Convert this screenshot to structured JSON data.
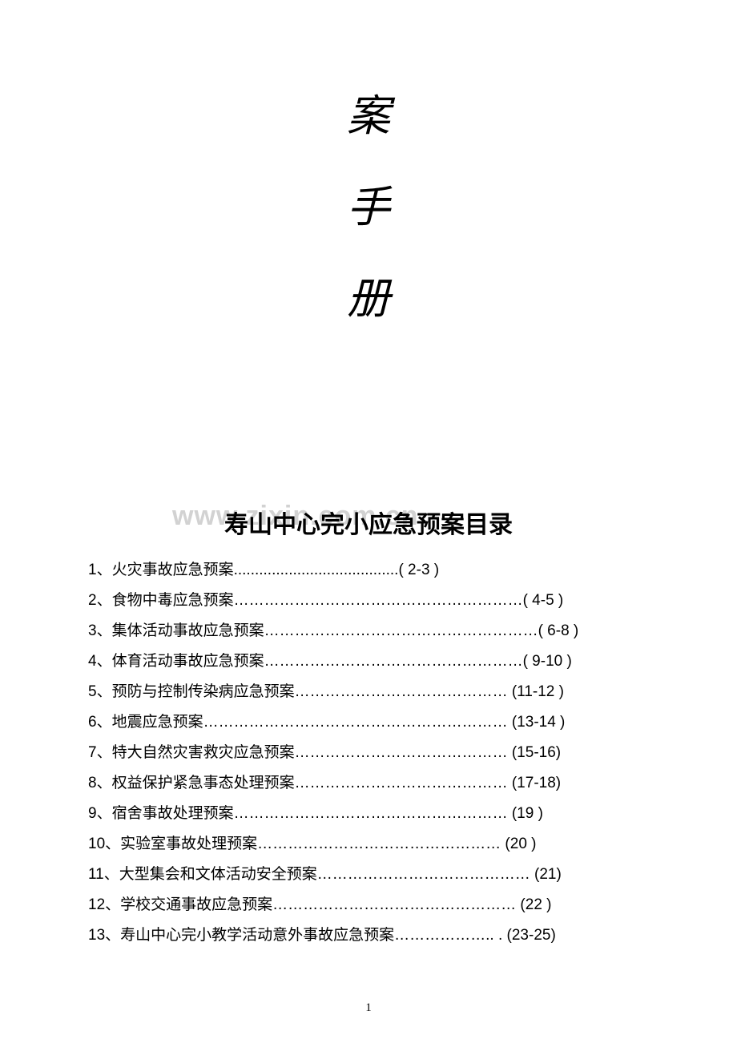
{
  "vertical_title": {
    "char1": "案",
    "char2": "手",
    "char3": "册"
  },
  "watermark": "www.zixin.com.cn",
  "toc_title": "寿山中心完小应急预案目录",
  "toc_items": [
    {
      "num": "1",
      "text": "、火灾事故应急预案.......................................( 2-3 )"
    },
    {
      "num": "2",
      "text": "、食物中毒应急预案…………………………………………………( 4-5 )"
    },
    {
      "num": "3",
      "text": "、集体活动事故应急预案………………………………………………( 6-8 )"
    },
    {
      "num": "4",
      "text": "、体育活动事故应急预案……………………………………………( 9-10 )"
    },
    {
      "num": "5",
      "text": "、预防与控制传染病应急预案…………………………………… (11-12 )"
    },
    {
      "num": "6",
      "text": "、地震应急预案……………………………………………………      (13-14 )"
    },
    {
      "num": "7",
      "text": "、特大自然灾害救灾应急预案……………………………………    (15-16)"
    },
    {
      "num": "8",
      "text": "、权益保护紧急事态处理预案…………………………………… (17-18)"
    },
    {
      "num": "9",
      "text": "、宿舍事故处理预案………………………………………………      (19 )"
    },
    {
      "num": "10",
      "text": "、实验室事故处理预案…………………………………………      (20 )"
    },
    {
      "num": "11",
      "text": "、大型集会和文体活动安全预案……………………………………    (21)"
    },
    {
      "num": "12",
      "text": "、学校交通事故应急预案…………………………………………      (22 )"
    },
    {
      "num": "13",
      "text": "、寿山中心完小教学活动意外事故应急预案……………….. . (23-25)"
    }
  ],
  "page_number": "1",
  "colors": {
    "background": "#ffffff",
    "text": "#000000",
    "watermark": "rgba(180, 180, 180, 0.6)"
  },
  "typography": {
    "vertical_title_font": "STXingkai",
    "vertical_title_size": 54,
    "toc_title_font": "SimHei",
    "toc_title_size": 30,
    "toc_item_font": "SimHei",
    "toc_item_size": 19,
    "toc_line_height": 38
  }
}
